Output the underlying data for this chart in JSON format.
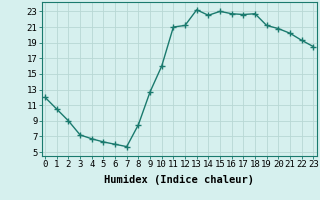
{
  "x": [
    0,
    1,
    2,
    3,
    4,
    5,
    6,
    7,
    8,
    9,
    10,
    11,
    12,
    13,
    14,
    15,
    16,
    17,
    18,
    19,
    20,
    21,
    22,
    23
  ],
  "y": [
    12,
    10.5,
    9,
    7.2,
    6.7,
    6.3,
    6.0,
    5.7,
    8.5,
    12.7,
    16.0,
    21.0,
    21.2,
    23.2,
    22.5,
    23.0,
    22.7,
    22.6,
    22.7,
    21.2,
    20.8,
    20.2,
    19.3,
    18.5
  ],
  "line_color": "#1a7a6e",
  "marker": "+",
  "marker_size": 4,
  "bg_color": "#d6f0ee",
  "grid_color": "#b8d8d4",
  "xlabel": "Humidex (Indice chaleur)",
  "yticks": [
    5,
    7,
    9,
    11,
    13,
    15,
    17,
    19,
    21,
    23
  ],
  "xticks": [
    0,
    1,
    2,
    3,
    4,
    5,
    6,
    7,
    8,
    9,
    10,
    11,
    12,
    13,
    14,
    15,
    16,
    17,
    18,
    19,
    20,
    21,
    22,
    23
  ],
  "xlim": [
    -0.3,
    23.3
  ],
  "ylim": [
    4.5,
    24.2
  ],
  "xlabel_fontsize": 7.5,
  "tick_fontsize": 6.5,
  "linewidth": 1.0,
  "marker_lw": 1.0
}
